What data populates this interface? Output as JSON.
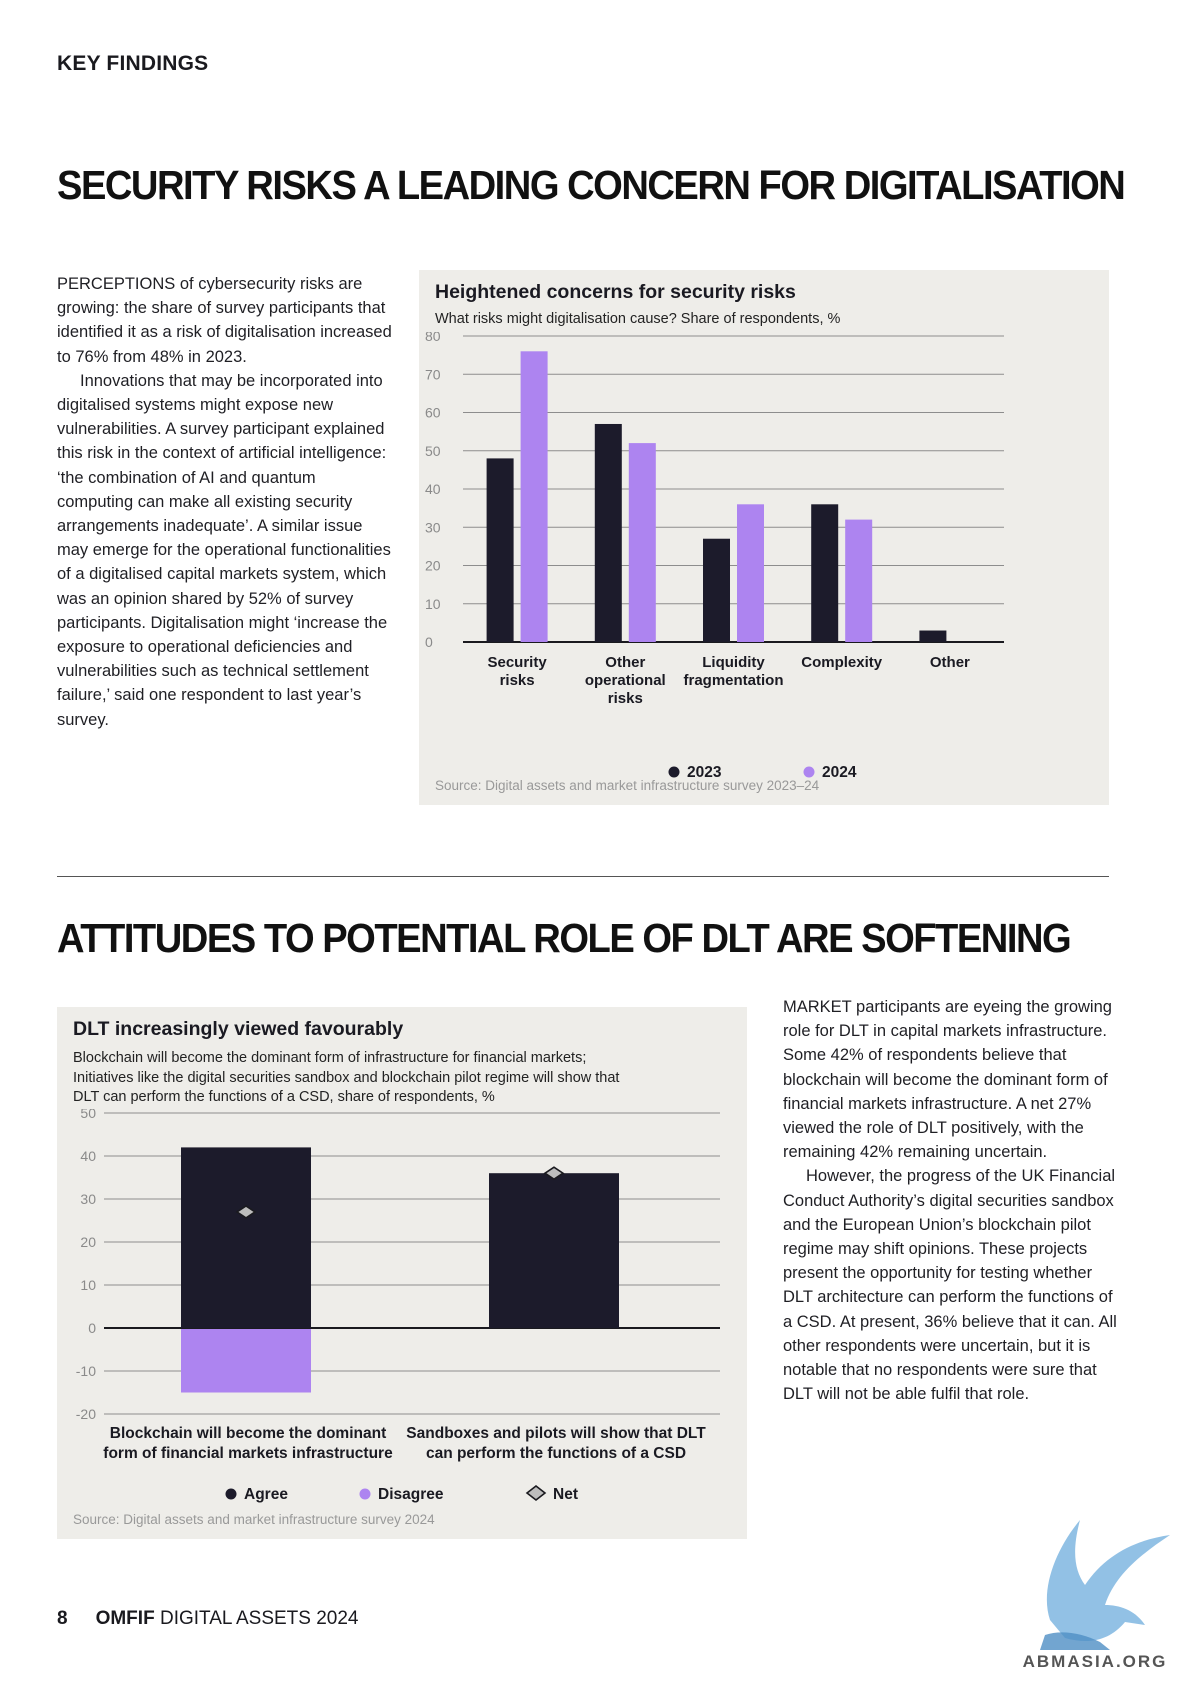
{
  "header": {
    "kicker": "KEY FINDINGS"
  },
  "section1": {
    "heading": "SECURITY RISKS A LEADING CONCERN FOR DIGITALISATION",
    "paragraphs": [
      "PERCEPTIONS of cybersecurity risks are growing: the share of survey participants that identified it as a risk of digitalisation increased to 76% from 48% in 2023.",
      "Innovations that may be incorporated into digitalised systems might expose new vulnerabilities. A survey participant explained this risk in the context of artificial intelligence: ‘the combination of AI and quantum computing can make all existing security arrangements inadequate’. A similar issue may emerge for the operational functionalities of a digitalised capital markets system, which was an opinion shared by 52% of survey participants. Digitalisation might ‘increase the exposure to operational deficiencies and vulnerabilities such as technical settlement failure,’ said one respondent to last year’s survey."
    ]
  },
  "section2": {
    "heading": "ATTITUDES TO POTENTIAL ROLE OF DLT ARE SOFTENING",
    "paragraphs": [
      "MARKET participants are eyeing the growing role for DLT in capital markets infrastructure. Some 42% of respondents believe that blockchain will become the dominant form of financial markets infrastructure. A net 27% viewed the role of DLT positively, with the remaining 42% remaining uncertain.",
      "However, the progress of the UK Financial Conduct Authority’s digital securities sandbox and the European Union’s blockchain pilot regime may shift opinions. These projects present the opportunity for testing whether DLT architecture can perform the functions of a CSD. At present, 36% believe that it can. All other respondents were uncertain, but it is notable that no respondents were sure that DLT will not be able fulfil that role."
    ]
  },
  "chart_data": [
    {
      "type": "bar",
      "title": "Heightened concerns for security risks",
      "subtitle": "What risks might digitalisation cause? Share of respondents, %",
      "categories": [
        [
          "Security",
          "risks"
        ],
        [
          "Other",
          "operational",
          "risks"
        ],
        [
          "Liquidity",
          "fragmentation"
        ],
        [
          "Complexity"
        ],
        [
          "Other"
        ]
      ],
      "series": [
        {
          "name": "2023",
          "color": "#1c1b2b",
          "values": [
            48,
            57,
            27,
            36,
            3
          ]
        },
        {
          "name": "2024",
          "color": "#ad84f0",
          "values": [
            76,
            52,
            36,
            32,
            0
          ]
        }
      ],
      "ylim": [
        0,
        80
      ],
      "yticks": [
        0,
        10,
        20,
        30,
        40,
        50,
        60,
        70,
        80
      ],
      "grid": true,
      "legend": "bottom",
      "source": "Source: Digital assets and market infrastructure survey 2023–24"
    },
    {
      "type": "bar",
      "title": "DLT increasingly viewed favourably",
      "subtitle_lines": [
        "Blockchain will become the dominant form of infrastructure for financial markets;",
        "Initiatives like the digital securities sandbox and blockchain pilot regime will show that",
        "DLT can perform the functions of a CSD, share of respondents, %"
      ],
      "categories": [
        [
          "Blockchain will become the dominant",
          "form of financial markets infrastructure"
        ],
        [
          "Sandboxes and pilots will show that DLT",
          "can perform the functions of a CSD"
        ]
      ],
      "series": [
        {
          "name": "Agree",
          "color": "#1c1b2b",
          "values": [
            42,
            36
          ]
        },
        {
          "name": "Disagree",
          "color": "#ad84f0",
          "values": [
            -15,
            0
          ]
        },
        {
          "name": "Net",
          "marker": "diamond",
          "values": [
            27,
            36
          ]
        }
      ],
      "ylim": [
        -20,
        50
      ],
      "yticks": [
        -20,
        -10,
        0,
        10,
        20,
        30,
        40,
        50
      ],
      "grid": true,
      "legend": "bottom",
      "source": "Source: Digital assets and market infrastructure survey 2024"
    }
  ],
  "footer": {
    "page": "8",
    "brand": "OMFIF",
    "title": "DIGITAL ASSETS 2024"
  },
  "watermark": {
    "text": "ABMASIA.ORG",
    "icon": "griffin-logo-icon"
  }
}
